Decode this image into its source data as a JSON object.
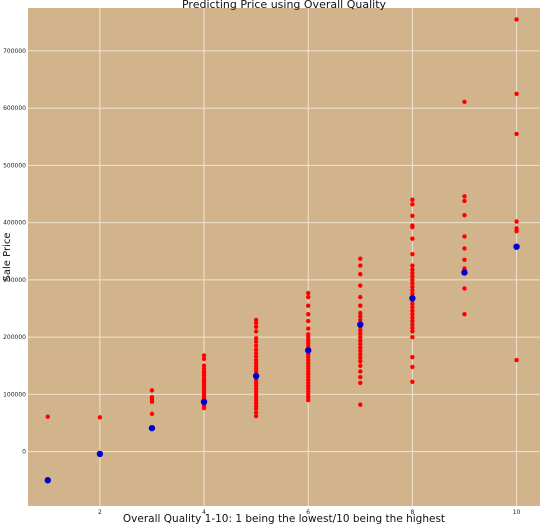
{
  "chart_data": {
    "type": "scatter",
    "title": "Predicting Price using Overall Quality",
    "xlabel": "Overall Quality 1-10: 1 being the lowest/10 being the highest",
    "ylabel": "Sale Price",
    "xlim": [
      0.62,
      10.45
    ],
    "ylim": [
      -95000,
      775000
    ],
    "x_ticks": [
      2,
      4,
      6,
      8,
      10
    ],
    "y_ticks": [
      0,
      100000,
      200000,
      300000,
      400000,
      500000,
      600000,
      700000
    ],
    "grid": true,
    "background": "#d2b48c",
    "grid_color": "#efe3cf",
    "series": [
      {
        "color": "#ff0000",
        "marker_size": 2.2,
        "points": [
          [
            1,
            61000
          ],
          [
            2,
            60000
          ],
          [
            3,
            107000
          ],
          [
            3,
            95000
          ],
          [
            3,
            91000
          ],
          [
            3,
            87000
          ],
          [
            3,
            66000
          ],
          [
            4,
            168000
          ],
          [
            4,
            162000
          ],
          [
            4,
            150000
          ],
          [
            4,
            145000
          ],
          [
            4,
            140000
          ],
          [
            4,
            136000
          ],
          [
            4,
            133000
          ],
          [
            4,
            128000
          ],
          [
            4,
            124000
          ],
          [
            4,
            120000
          ],
          [
            4,
            116000
          ],
          [
            4,
            112000
          ],
          [
            4,
            108000
          ],
          [
            4,
            104000
          ],
          [
            4,
            100000
          ],
          [
            4,
            96000
          ],
          [
            4,
            92000
          ],
          [
            4,
            88000
          ],
          [
            4,
            84000
          ],
          [
            4,
            80000
          ],
          [
            4,
            76000
          ],
          [
            5,
            230000
          ],
          [
            5,
            225000
          ],
          [
            5,
            218000
          ],
          [
            5,
            210000
          ],
          [
            5,
            198000
          ],
          [
            5,
            192000
          ],
          [
            5,
            185000
          ],
          [
            5,
            178000
          ],
          [
            5,
            172000
          ],
          [
            5,
            166000
          ],
          [
            5,
            160000
          ],
          [
            5,
            155000
          ],
          [
            5,
            150000
          ],
          [
            5,
            145000
          ],
          [
            5,
            140000
          ],
          [
            5,
            135000
          ],
          [
            5,
            130000
          ],
          [
            5,
            125000
          ],
          [
            5,
            120000
          ],
          [
            5,
            115000
          ],
          [
            5,
            110000
          ],
          [
            5,
            105000
          ],
          [
            5,
            100000
          ],
          [
            5,
            95000
          ],
          [
            5,
            90000
          ],
          [
            5,
            85000
          ],
          [
            5,
            80000
          ],
          [
            5,
            75000
          ],
          [
            5,
            68000
          ],
          [
            5,
            62000
          ],
          [
            6,
            277000
          ],
          [
            6,
            270000
          ],
          [
            6,
            255000
          ],
          [
            6,
            240000
          ],
          [
            6,
            228000
          ],
          [
            6,
            215000
          ],
          [
            6,
            205000
          ],
          [
            6,
            200000
          ],
          [
            6,
            195000
          ],
          [
            6,
            190000
          ],
          [
            6,
            185000
          ],
          [
            6,
            180000
          ],
          [
            6,
            175000
          ],
          [
            6,
            170000
          ],
          [
            6,
            165000
          ],
          [
            6,
            160000
          ],
          [
            6,
            155000
          ],
          [
            6,
            150000
          ],
          [
            6,
            145000
          ],
          [
            6,
            140000
          ],
          [
            6,
            135000
          ],
          [
            6,
            130000
          ],
          [
            6,
            125000
          ],
          [
            6,
            120000
          ],
          [
            6,
            115000
          ],
          [
            6,
            110000
          ],
          [
            6,
            105000
          ],
          [
            6,
            100000
          ],
          [
            6,
            95000
          ],
          [
            6,
            90000
          ],
          [
            7,
            337000
          ],
          [
            7,
            325000
          ],
          [
            7,
            310000
          ],
          [
            7,
            290000
          ],
          [
            7,
            270000
          ],
          [
            7,
            255000
          ],
          [
            7,
            242000
          ],
          [
            7,
            236000
          ],
          [
            7,
            230000
          ],
          [
            7,
            224000
          ],
          [
            7,
            218000
          ],
          [
            7,
            212000
          ],
          [
            7,
            206000
          ],
          [
            7,
            200000
          ],
          [
            7,
            194000
          ],
          [
            7,
            188000
          ],
          [
            7,
            182000
          ],
          [
            7,
            176000
          ],
          [
            7,
            170000
          ],
          [
            7,
            164000
          ],
          [
            7,
            158000
          ],
          [
            7,
            150000
          ],
          [
            7,
            140000
          ],
          [
            7,
            130000
          ],
          [
            7,
            120000
          ],
          [
            7,
            82000
          ],
          [
            8,
            440000
          ],
          [
            8,
            432000
          ],
          [
            8,
            412000
          ],
          [
            8,
            395000
          ],
          [
            8,
            392000
          ],
          [
            8,
            372000
          ],
          [
            8,
            345000
          ],
          [
            8,
            325000
          ],
          [
            8,
            318000
          ],
          [
            8,
            312000
          ],
          [
            8,
            306000
          ],
          [
            8,
            300000
          ],
          [
            8,
            294000
          ],
          [
            8,
            288000
          ],
          [
            8,
            282000
          ],
          [
            8,
            276000
          ],
          [
            8,
            270000
          ],
          [
            8,
            264000
          ],
          [
            8,
            258000
          ],
          [
            8,
            252000
          ],
          [
            8,
            246000
          ],
          [
            8,
            240000
          ],
          [
            8,
            234000
          ],
          [
            8,
            228000
          ],
          [
            8,
            222000
          ],
          [
            8,
            216000
          ],
          [
            8,
            210000
          ],
          [
            8,
            200000
          ],
          [
            8,
            165000
          ],
          [
            8,
            148000
          ],
          [
            8,
            122000
          ],
          [
            9,
            611000
          ],
          [
            9,
            446000
          ],
          [
            9,
            438000
          ],
          [
            9,
            413000
          ],
          [
            9,
            376000
          ],
          [
            9,
            355000
          ],
          [
            9,
            335000
          ],
          [
            9,
            320000
          ],
          [
            9,
            316000
          ],
          [
            9,
            312000
          ],
          [
            9,
            285000
          ],
          [
            9,
            240000
          ],
          [
            10,
            755000
          ],
          [
            10,
            625000
          ],
          [
            10,
            555000
          ],
          [
            10,
            402000
          ],
          [
            10,
            390000
          ],
          [
            10,
            385000
          ],
          [
            10,
            160000
          ]
        ]
      },
      {
        "color": "#0000cc",
        "marker_size": 3.2,
        "points": [
          [
            1,
            -50000
          ],
          [
            2,
            -4000
          ],
          [
            3,
            41000
          ],
          [
            4,
            87000
          ],
          [
            5,
            132000
          ],
          [
            6,
            177000
          ],
          [
            7,
            222000
          ],
          [
            8,
            268000
          ],
          [
            9,
            313000
          ],
          [
            10,
            358000
          ]
        ]
      }
    ]
  }
}
